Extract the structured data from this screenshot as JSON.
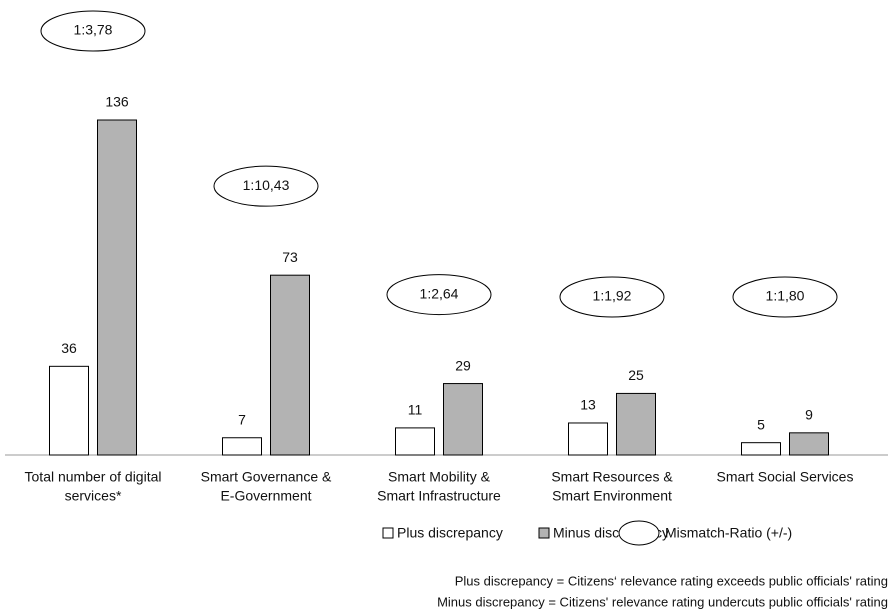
{
  "chart_data": {
    "type": "bar",
    "categories": [
      [
        "Total number of digital",
        "services*"
      ],
      [
        "Smart Governance &",
        "E-Government"
      ],
      [
        "Smart Mobility &",
        "Smart Infrastructure"
      ],
      [
        "Smart Resources &",
        "Smart Environment"
      ],
      [
        "Smart Social Services"
      ]
    ],
    "series": [
      {
        "name": "Plus discrepancy",
        "color": "#ffffff",
        "values": [
          36,
          7,
          11,
          13,
          5
        ]
      },
      {
        "name": "Minus discrepancy",
        "color": "#b3b3b3",
        "values": [
          136,
          73,
          29,
          25,
          9
        ]
      }
    ],
    "ratios": {
      "name": "Mismatch-Ratio (+/-)",
      "labels": [
        "1:3,78",
        "1:10,43",
        "1:2,64",
        "1:1,92",
        "1:1,80"
      ]
    },
    "notes": [
      "Plus discrepancy = Citizens‘ relevance rating exceeds public officials' rating",
      "Minus discrepancy = Citizens' relevance rating undercuts public officials' rating"
    ]
  }
}
